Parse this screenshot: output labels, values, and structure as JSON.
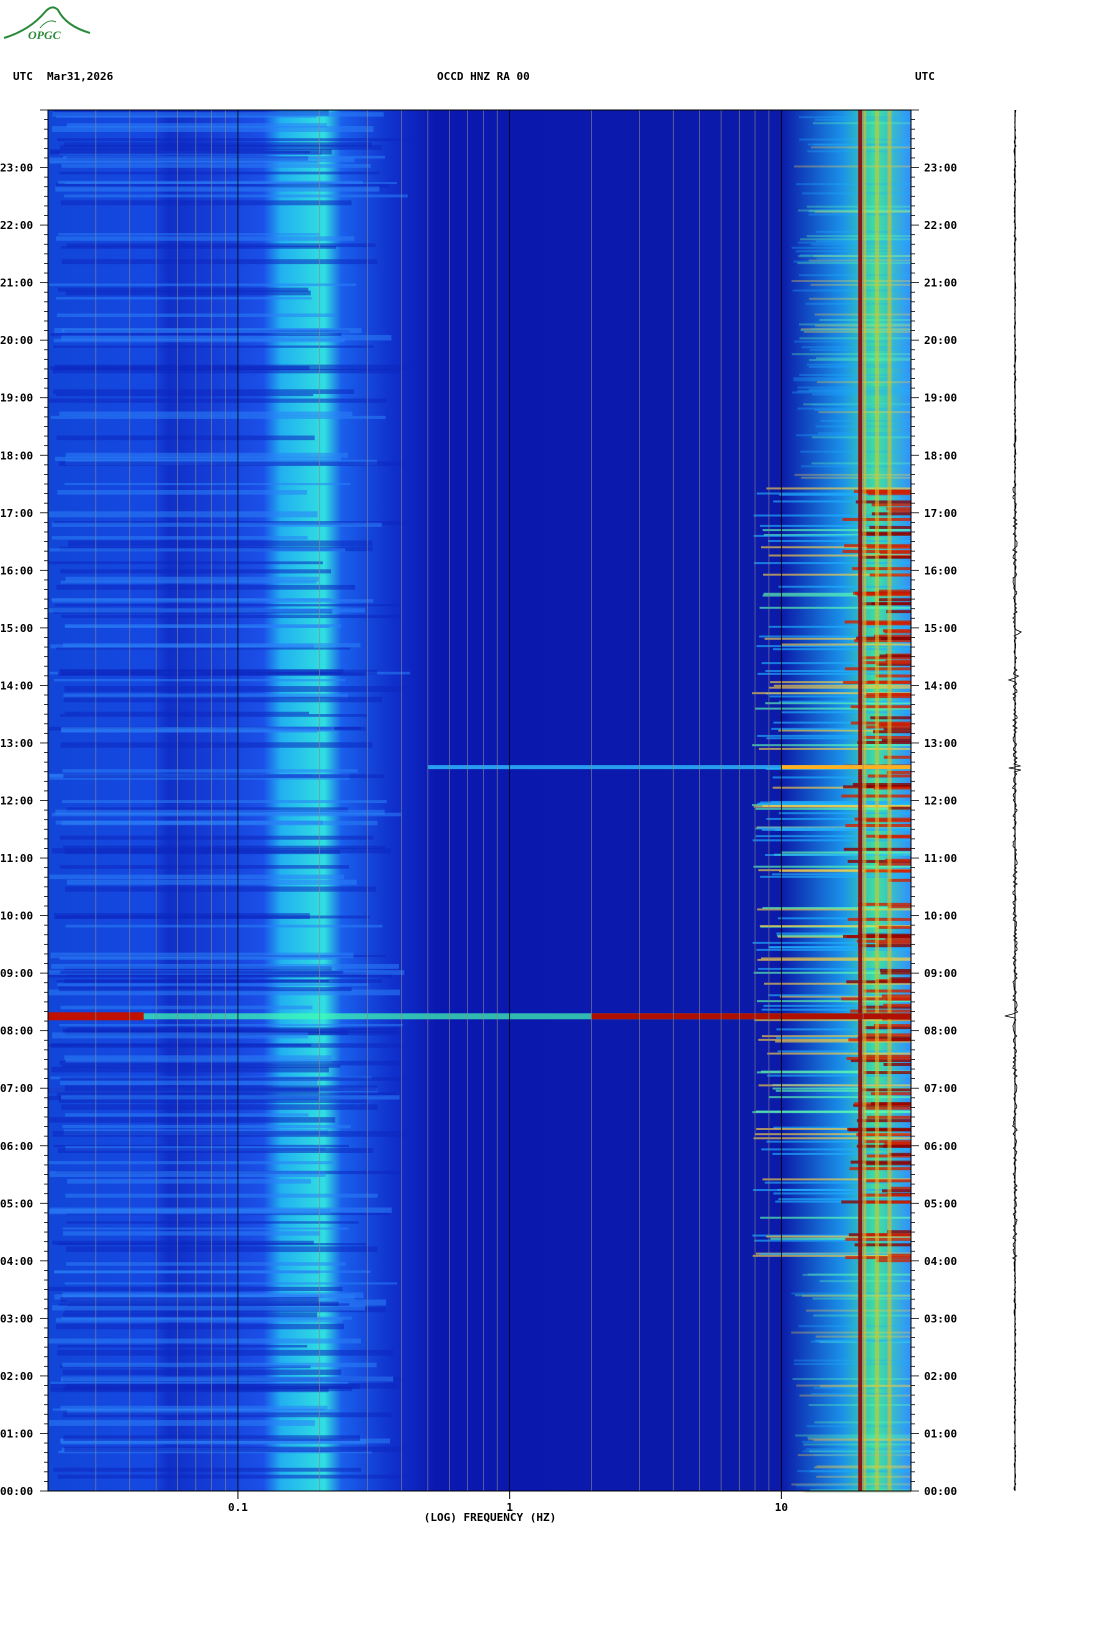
{
  "header": {
    "left_tz": "UTC",
    "date": "Mar31,2026",
    "station": "OCCD HNZ RA 00",
    "right_tz": "UTC"
  },
  "logo": {
    "text": "OPGC",
    "color": "#2a8a3a"
  },
  "chart_data": {
    "type": "heatmap",
    "title": "OCCD HNZ RA 00",
    "xlabel": "(LOG) FREQUENCY (HZ)",
    "x_scale": "log",
    "xlim": [
      0.02,
      30
    ],
    "x_ticks": [
      {
        "value": 0.1,
        "label": "0.1"
      },
      {
        "value": 1,
        "label": "1"
      },
      {
        "value": 10,
        "label": "10"
      }
    ],
    "y_ticks": [
      "00:00",
      "01:00",
      "02:00",
      "03:00",
      "04:00",
      "05:00",
      "06:00",
      "07:00",
      "08:00",
      "09:00",
      "10:00",
      "11:00",
      "12:00",
      "13:00",
      "14:00",
      "15:00",
      "16:00",
      "17:00",
      "18:00",
      "19:00",
      "20:00",
      "21:00",
      "22:00",
      "23:00"
    ],
    "ylim_hours": [
      0,
      24
    ],
    "colormap": [
      "#00008b",
      "#0000d8",
      "#0050ff",
      "#00c8ff",
      "#40ffc0",
      "#d0ff30",
      "#ffd000",
      "#ff4000",
      "#8b0000"
    ],
    "background_colors": [
      "#0b18b0",
      "#1448e6",
      "#1ec8f0"
    ],
    "events": [
      {
        "label": "main event",
        "hour": 8.25,
        "f_min": 0.02,
        "f_max": 30
      },
      {
        "label": "secondary event",
        "hour": 12.58,
        "f_min": 0.5,
        "f_max": 30
      }
    ],
    "persistent_lines_hz": [
      19.5,
      20.2,
      22.5,
      25.0
    ],
    "grid": true
  },
  "trace": {
    "label": "seismogram",
    "color": "#000000"
  }
}
